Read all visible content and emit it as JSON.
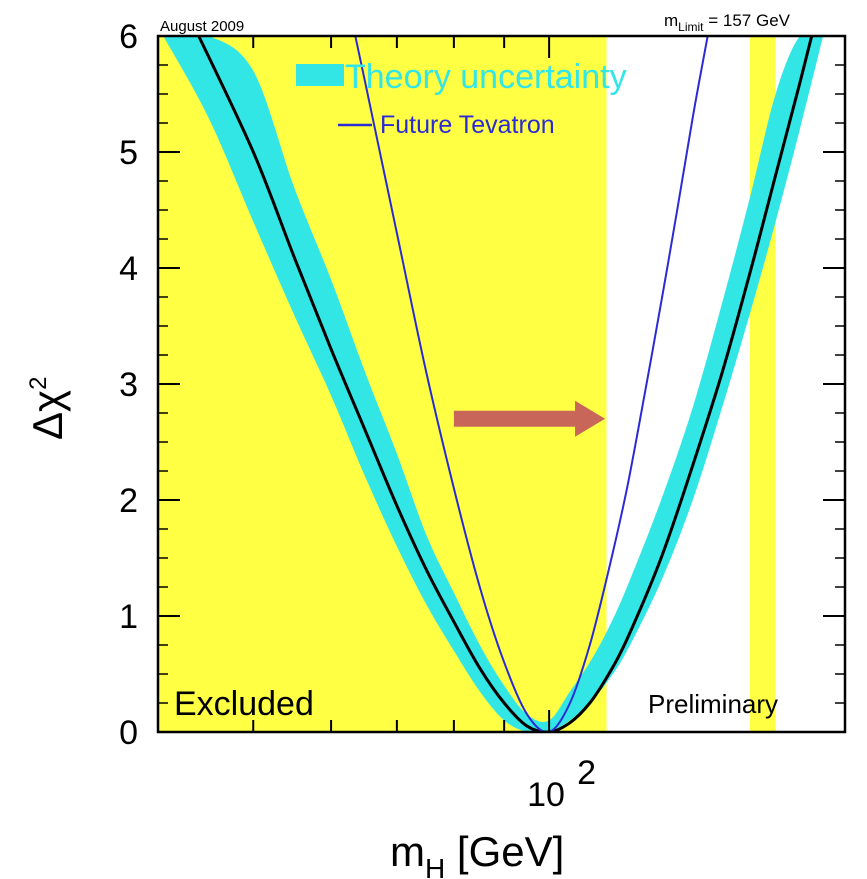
{
  "chart_data": {
    "type": "line",
    "date_note": "August 2009",
    "m_limit_label": {
      "prefix": "m",
      "subscript": "Limit",
      "suffix": " = 157 GeV"
    },
    "xlabel": {
      "main": "m",
      "subscript": "H",
      "suffix": " [GeV]"
    },
    "ylabel": {
      "main": "Δχ",
      "superscript": "2"
    },
    "x_scale": "log",
    "xlim": [
      40,
      200
    ],
    "ylim": [
      0,
      6
    ],
    "y_ticks": [
      0,
      1,
      2,
      3,
      4,
      5,
      6
    ],
    "x_tick_label": {
      "base": "10",
      "exponent": "2",
      "value": 100
    },
    "x_minor_ticks": [
      40,
      50,
      60,
      70,
      80,
      90,
      100,
      200
    ],
    "excluded_regions": [
      {
        "from": 40,
        "to": 114.4,
        "label": "Excluded"
      },
      {
        "from": 160,
        "to": 170
      }
    ],
    "preliminary_label": "Preliminary",
    "legend": [
      {
        "label": "Theory uncertainty",
        "style": "band",
        "color": "#33e6e6"
      },
      {
        "label": "Future Tevatron",
        "style": "line",
        "color": "#2b2bd6"
      }
    ],
    "series": [
      {
        "style": "band",
        "color": "#33e6e6",
        "x": [
          40.5,
          45,
          50,
          55,
          60,
          65,
          70,
          75,
          80,
          85,
          90,
          95,
          100,
          105,
          110,
          115,
          120,
          130,
          140,
          150,
          160,
          170,
          180,
          190
        ],
        "y_low": [
          6.0,
          5.3,
          4.4,
          3.6,
          2.9,
          2.2,
          1.6,
          1.1,
          0.7,
          0.35,
          0.1,
          0.0,
          0.0,
          0.1,
          0.25,
          0.45,
          0.7,
          1.3,
          2.0,
          2.8,
          3.6,
          4.4,
          5.2,
          6.0
        ],
        "y_high": [
          6.0,
          6.0,
          5.7,
          4.7,
          3.9,
          3.1,
          2.4,
          1.7,
          1.2,
          0.75,
          0.4,
          0.15,
          0.1,
          0.35,
          0.6,
          0.9,
          1.25,
          2.0,
          2.8,
          3.7,
          4.6,
          5.5,
          6.0,
          6.0
        ]
      },
      {
        "name": "",
        "style": "line",
        "color": "#000000",
        "x": [
          44,
          50,
          55,
          60,
          65,
          70,
          75,
          80,
          85,
          90,
          95,
          100,
          105,
          110,
          115,
          120,
          130,
          140,
          150,
          160,
          170,
          180,
          185
        ],
        "y": [
          6.0,
          5.0,
          4.1,
          3.3,
          2.6,
          1.95,
          1.4,
          0.95,
          0.55,
          0.25,
          0.05,
          0.0,
          0.08,
          0.25,
          0.5,
          0.8,
          1.5,
          2.3,
          3.1,
          3.95,
          4.8,
          5.6,
          6.0
        ]
      },
      {
        "name": "Future Tevatron",
        "style": "line",
        "color": "#2b2bd6",
        "x": [
          63.5,
          65,
          70,
          75,
          80,
          85,
          90,
          95,
          100,
          105,
          110,
          115,
          120,
          125,
          130,
          135,
          140,
          145
        ],
        "y": [
          6.0,
          5.6,
          4.3,
          3.1,
          2.1,
          1.25,
          0.6,
          0.15,
          0.0,
          0.25,
          0.75,
          1.4,
          2.1,
          2.9,
          3.7,
          4.5,
          5.3,
          6.0
        ]
      }
    ],
    "annotations": [
      {
        "type": "arrow",
        "from": [
          80,
          2.7
        ],
        "to": [
          114,
          2.7
        ],
        "color": "#c8665a"
      }
    ]
  }
}
